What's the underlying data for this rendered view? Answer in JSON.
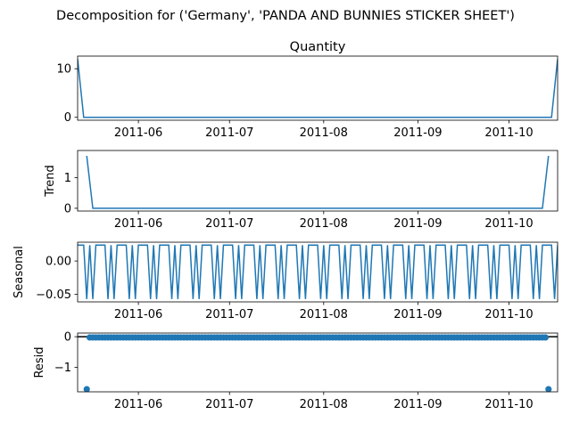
{
  "figure_title": "Decomposition for ('Germany', 'PANDA AND BUNNIES STICKER SHEET')",
  "colors": {
    "line": "#1f77b4",
    "axis": "#000000",
    "background": "#ffffff"
  },
  "date_ticks": [
    "2011-06-01",
    "2011-07-01",
    "2011-08-01",
    "2011-09-01",
    "2011-10-01"
  ],
  "date_tick_labels": [
    "2011-06",
    "2011-07",
    "2011-08",
    "2011-09",
    "2011-10"
  ],
  "chart_data": [
    {
      "type": "line",
      "title": "Quantity",
      "ylabel": "",
      "xlim": [
        "2011-05-12",
        "2011-10-17"
      ],
      "ylim": [
        -0.6,
        12.6
      ],
      "yticks": [
        0,
        10
      ],
      "ytick_labels": [
        "0",
        "10"
      ],
      "series": [
        {
          "x": [
            "2011-05-12",
            "2011-05-14",
            "2011-10-15",
            "2011-10-17"
          ],
          "y": [
            12,
            0,
            0,
            12
          ]
        }
      ]
    },
    {
      "type": "line",
      "title": "",
      "ylabel": "Trend",
      "xlim": [
        "2011-05-12",
        "2011-10-17"
      ],
      "ylim": [
        -0.09,
        1.89
      ],
      "yticks": [
        0,
        1
      ],
      "ytick_labels": [
        "0",
        "1"
      ],
      "series": [
        {
          "x": [
            "2011-05-15",
            "2011-05-17",
            "2011-10-12",
            "2011-10-14"
          ],
          "y": [
            1.714,
            0,
            0,
            1.714
          ]
        }
      ]
    },
    {
      "type": "line",
      "title": "",
      "ylabel": "Seasonal",
      "xlim": [
        "2011-05-12",
        "2011-10-17"
      ],
      "ylim": [
        -0.0613,
        0.0282
      ],
      "yticks": [
        0.0,
        -0.05
      ],
      "ytick_labels": [
        "0.00",
        "−0.05"
      ],
      "pattern_period_days": 7,
      "pattern": [
        0.0238,
        0.0238,
        0.0238,
        -0.0571,
        0.0238,
        -0.0571,
        0.0238
      ]
    },
    {
      "type": "scatter",
      "title": "",
      "ylabel": "Resid",
      "xlim": [
        "2011-05-12",
        "2011-10-17"
      ],
      "ylim": [
        -1.8,
        0.12
      ],
      "yticks": [
        0,
        -1
      ],
      "ytick_labels": [
        "0",
        "−1"
      ],
      "baseline": 0,
      "series": [
        {
          "x_start": "2011-05-15",
          "x_end": "2011-10-14",
          "y": -0.0238,
          "outliers": [
            {
              "x": "2011-05-15",
              "y": -1.714
            },
            {
              "x": "2011-10-14",
              "y": -1.714
            }
          ]
        }
      ]
    }
  ]
}
